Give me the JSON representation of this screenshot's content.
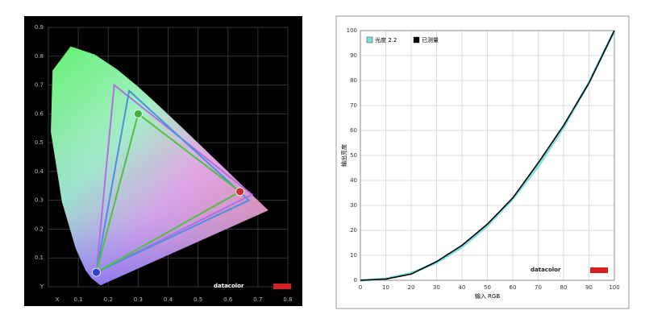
{
  "chart_data": [
    {
      "type": "chromaticity",
      "xlim": [
        0,
        0.8
      ],
      "ylim": [
        0,
        0.9
      ],
      "xticks": [
        {
          "value": 0,
          "label": "X"
        },
        0.1,
        0.2,
        0.3,
        0.4,
        0.5,
        0.6,
        0.7,
        0.8
      ],
      "yticks": [
        {
          "value": 0,
          "label": "Y"
        },
        0.1,
        0.2,
        0.3,
        0.4,
        0.5,
        0.6,
        0.7,
        0.8,
        0.9
      ],
      "grid": true,
      "locus": {
        "x": [
          0.1741,
          0.144,
          0.1241,
          0.0913,
          0.0454,
          0.0082,
          0.0139,
          0.0743,
          0.1547,
          0.2296,
          0.3016,
          0.3731,
          0.4441,
          0.5125,
          0.5752,
          0.627,
          0.6915,
          0.7347
        ],
        "y": [
          0.005,
          0.0297,
          0.0578,
          0.1327,
          0.295,
          0.5384,
          0.7502,
          0.8338,
          0.8059,
          0.7543,
          0.6923,
          0.6245,
          0.5547,
          0.4866,
          0.4242,
          0.3725,
          0.3083,
          0.2653
        ]
      },
      "series": [
        {
          "color": "#b070e0",
          "x": [
            0.68,
            0.22,
            0.16
          ],
          "y": [
            0.32,
            0.7,
            0.05
          ]
        },
        {
          "color": "#4a90e0",
          "x": [
            0.67,
            0.27,
            0.16
          ],
          "y": [
            0.3,
            0.68,
            0.05
          ]
        },
        {
          "color": "#50c040",
          "x": [
            0.64,
            0.3,
            0.16
          ],
          "y": [
            0.33,
            0.6,
            0.05
          ]
        }
      ],
      "points": {
        "x": [
          0.64,
          0.3,
          0.16
        ],
        "y": [
          0.33,
          0.6,
          0.05
        ],
        "colors": [
          "#d03030",
          "#40b040",
          "#3040d0"
        ]
      },
      "watermark": "datacolor"
    },
    {
      "type": "line",
      "x": [
        0,
        10,
        20,
        30,
        40,
        50,
        60,
        70,
        80,
        90,
        100
      ],
      "series": [
        {
          "name": "光度 2.2",
          "color": "#7fe0e0",
          "values": [
            0,
            0.6,
            2.9,
            7.1,
            13.3,
            21.8,
            32.6,
            45.6,
            61.2,
            79.3,
            100
          ]
        },
        {
          "name": "已测量",
          "color": "#000000",
          "values": [
            0,
            0.5,
            2.5,
            7.5,
            14,
            22.5,
            33,
            47,
            62,
            79,
            100
          ]
        }
      ],
      "xlabel": "输入 RGB",
      "ylabel": "输出亮度",
      "xlim": [
        0,
        100
      ],
      "ylim": [
        0,
        100
      ],
      "xticks": [
        0,
        10,
        20,
        30,
        40,
        50,
        60,
        70,
        80,
        90,
        100
      ],
      "yticks": [
        0,
        10,
        20,
        30,
        40,
        50,
        60,
        70,
        80,
        90,
        100
      ],
      "grid": true,
      "legend": "upper left",
      "watermark": "datacolor"
    }
  ]
}
